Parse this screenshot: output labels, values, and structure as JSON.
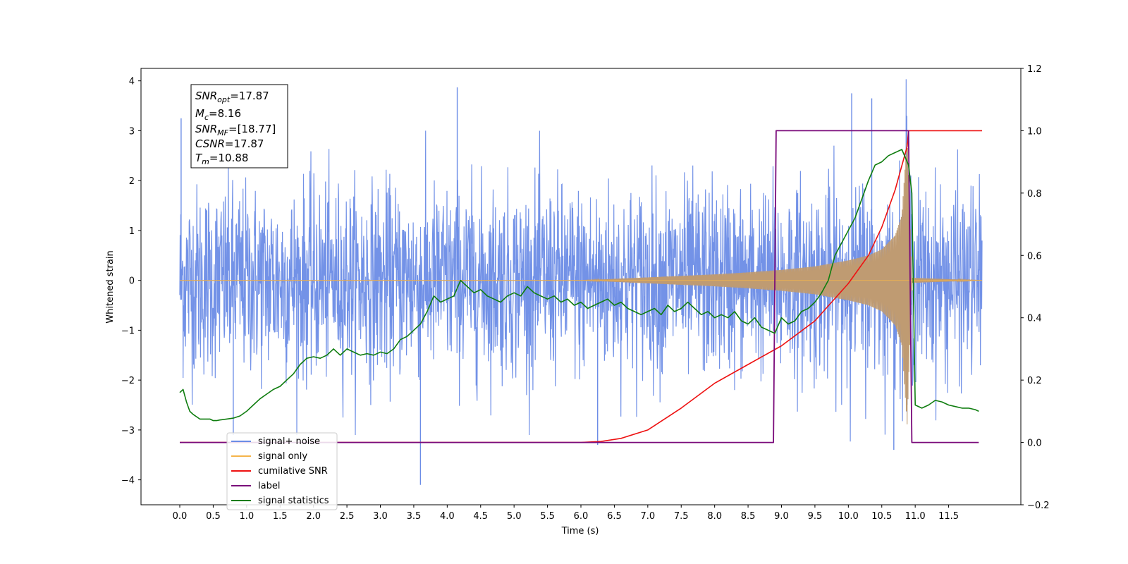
{
  "chart_data": {
    "type": "line",
    "xlabel": "Time (s)",
    "ylabel": "Whitened strain",
    "xlim": [
      -0.58,
      12.58
    ],
    "ylim": [
      -4.5,
      4.25
    ],
    "y2lim": [
      -0.2,
      1.2
    ],
    "xticks": [
      "0.0",
      "0.5",
      "1.0",
      "1.5",
      "2.0",
      "2.5",
      "3.0",
      "3.5",
      "4.0",
      "4.5",
      "5.0",
      "5.5",
      "6.0",
      "6.5",
      "7.0",
      "7.5",
      "8.0",
      "8.5",
      "9.0",
      "9.5",
      "10.0",
      "10.5",
      "11.0",
      "11.5"
    ],
    "yticks": [
      "4",
      "3",
      "2",
      "1",
      "0",
      "−1",
      "−2",
      "−3",
      "−4"
    ],
    "y2ticks": [
      "1.2",
      "1.0",
      "0.8",
      "0.6",
      "0.4",
      "0.2",
      "0.0",
      "−0.2"
    ],
    "annotation": {
      "snr_opt": {
        "base": "SNR",
        "sub": "opt",
        "value": "=17.87"
      },
      "mc": {
        "base": "M",
        "sub": "c",
        "value": "=8.16"
      },
      "snr_mf": {
        "base": "SNR",
        "sub": "MF",
        "value": "=[18.77]"
      },
      "csnr": {
        "base": "CSNR",
        "value": "=17.87"
      },
      "tm": {
        "base": "T",
        "sub": "m",
        "value": "=10.88"
      }
    },
    "legend": {
      "position": "lower-left",
      "entries": [
        "signal+ noise",
        "signal only",
        "cumilative SNR",
        "label",
        "signal statistics"
      ]
    },
    "colors": {
      "noise": "#6b8ce6",
      "signal": "#f5b44a",
      "overlap": "#bf9b72",
      "cumsnr": "#ee1111",
      "label": "#7a0a7a",
      "stats": "#0f7d0f"
    },
    "series": [
      {
        "name": "signal+ noise",
        "axis": "left",
        "x_range": [
          0.0,
          12.0
        ],
        "amplitude_sigma": 1.0,
        "peak_max": 3.87,
        "peak_min": -4.1
      },
      {
        "name": "signal only",
        "axis": "left",
        "envelope": {
          "x": [
            6.0,
            7.0,
            8.0,
            8.5,
            9.0,
            9.5,
            10.0,
            10.3,
            10.5,
            10.7,
            10.8,
            10.88,
            10.95,
            12.0
          ],
          "y": [
            0.0,
            0.06,
            0.12,
            0.16,
            0.21,
            0.28,
            0.4,
            0.5,
            0.62,
            0.9,
            1.3,
            2.9,
            0.05,
            0.0
          ]
        }
      },
      {
        "name": "cumilative SNR",
        "axis": "right",
        "x": [
          0.0,
          6.0,
          6.3,
          6.6,
          7.0,
          7.5,
          8.0,
          8.5,
          9.0,
          9.5,
          10.0,
          10.3,
          10.5,
          10.7,
          10.88,
          10.9,
          12.0
        ],
        "y": [
          0.0,
          0.0,
          0.003,
          0.013,
          0.04,
          0.11,
          0.19,
          0.25,
          0.31,
          0.39,
          0.51,
          0.6,
          0.69,
          0.81,
          0.95,
          1.0,
          1.0
        ]
      },
      {
        "name": "label",
        "axis": "right",
        "x": [
          0.0,
          8.88,
          8.92,
          10.9,
          10.95,
          11.95
        ],
        "y": [
          0.0,
          0.0,
          1.0,
          1.0,
          0.0,
          0.0
        ]
      },
      {
        "name": "signal statistics",
        "axis": "right",
        "x": [
          0.0,
          0.05,
          0.1,
          0.15,
          0.2,
          0.3,
          0.45,
          0.5,
          0.55,
          0.6,
          0.7,
          0.8,
          0.9,
          1.0,
          1.1,
          1.2,
          1.3,
          1.4,
          1.5,
          1.6,
          1.7,
          1.8,
          1.9,
          2.0,
          2.1,
          2.2,
          2.3,
          2.4,
          2.5,
          2.6,
          2.7,
          2.8,
          2.9,
          3.0,
          3.1,
          3.2,
          3.3,
          3.4,
          3.5,
          3.6,
          3.7,
          3.8,
          3.9,
          4.0,
          4.1,
          4.2,
          4.3,
          4.4,
          4.5,
          4.6,
          4.7,
          4.8,
          4.9,
          5.0,
          5.1,
          5.2,
          5.3,
          5.4,
          5.5,
          5.6,
          5.7,
          5.8,
          5.9,
          6.0,
          6.1,
          6.2,
          6.3,
          6.4,
          6.5,
          6.6,
          6.7,
          6.8,
          6.9,
          7.0,
          7.1,
          7.2,
          7.3,
          7.4,
          7.5,
          7.6,
          7.7,
          7.8,
          7.9,
          8.0,
          8.1,
          8.2,
          8.3,
          8.4,
          8.5,
          8.6,
          8.7,
          8.8,
          8.9,
          9.0,
          9.1,
          9.2,
          9.3,
          9.4,
          9.5,
          9.6,
          9.7,
          9.8,
          9.9,
          10.0,
          10.1,
          10.2,
          10.3,
          10.4,
          10.5,
          10.6,
          10.7,
          10.8,
          10.9,
          10.95,
          11.0,
          11.1,
          11.2,
          11.3,
          11.4,
          11.5,
          11.6,
          11.7,
          11.8,
          11.9,
          11.95
        ],
        "y": [
          0.16,
          0.17,
          0.13,
          0.1,
          0.09,
          0.075,
          0.075,
          0.07,
          0.07,
          0.072,
          0.075,
          0.078,
          0.085,
          0.1,
          0.12,
          0.14,
          0.155,
          0.17,
          0.18,
          0.2,
          0.22,
          0.25,
          0.27,
          0.275,
          0.27,
          0.28,
          0.3,
          0.28,
          0.3,
          0.29,
          0.28,
          0.285,
          0.28,
          0.29,
          0.285,
          0.3,
          0.33,
          0.34,
          0.36,
          0.38,
          0.42,
          0.47,
          0.45,
          0.46,
          0.47,
          0.52,
          0.5,
          0.48,
          0.49,
          0.47,
          0.46,
          0.45,
          0.47,
          0.48,
          0.47,
          0.5,
          0.48,
          0.47,
          0.46,
          0.47,
          0.45,
          0.46,
          0.44,
          0.45,
          0.43,
          0.44,
          0.45,
          0.46,
          0.44,
          0.45,
          0.43,
          0.42,
          0.41,
          0.42,
          0.43,
          0.41,
          0.44,
          0.42,
          0.43,
          0.45,
          0.43,
          0.41,
          0.42,
          0.4,
          0.41,
          0.4,
          0.42,
          0.39,
          0.38,
          0.4,
          0.37,
          0.36,
          0.35,
          0.4,
          0.38,
          0.39,
          0.42,
          0.43,
          0.45,
          0.48,
          0.52,
          0.6,
          0.64,
          0.68,
          0.72,
          0.78,
          0.84,
          0.89,
          0.9,
          0.92,
          0.93,
          0.94,
          0.89,
          0.8,
          0.12,
          0.11,
          0.12,
          0.135,
          0.13,
          0.12,
          0.115,
          0.11,
          0.11,
          0.105,
          0.1
        ]
      }
    ]
  }
}
